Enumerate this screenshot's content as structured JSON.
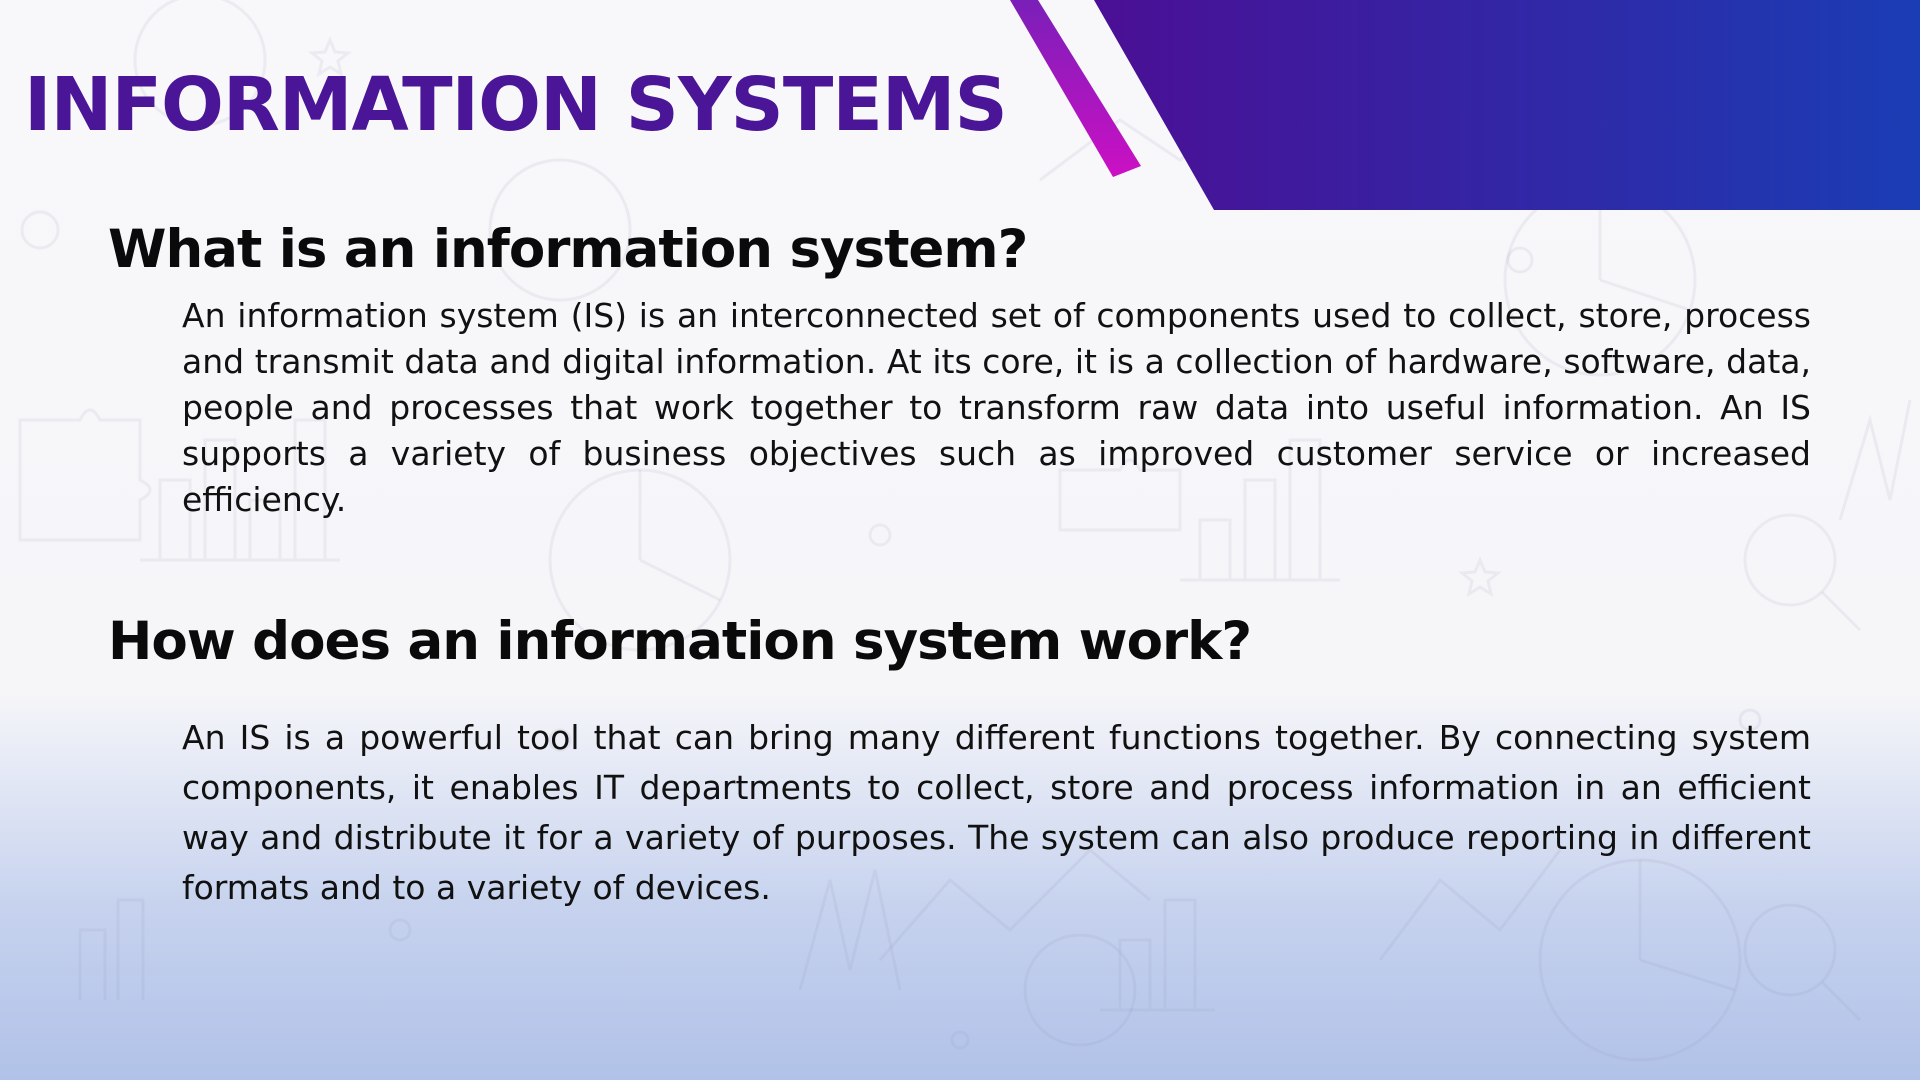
{
  "slide": {
    "title": "INFORMATION SYSTEMS",
    "sections": [
      {
        "heading": "What is an information system?",
        "body": "An information system (IS) is an interconnected set of components used to collect, store, process and transmit data and digital information. At its core, it is a collection of hardware, software, data, people and processes that work together to transform raw data into useful information. An IS supports a variety of business objectives such as improved customer service or increased efficiency."
      },
      {
        "heading": "How does an information system work?",
        "body": "An IS is a powerful tool that can bring many different functions together. By connecting system components, it enables IT departments to collect, store and process information in an efficient way and distribute it for a variety of purposes. The system can also produce reporting in different formats and to a variety of devices."
      }
    ]
  },
  "theme": {
    "title_color": "#4a1596",
    "banner_gradient": [
      "#4b0f95",
      "#1a3db5"
    ],
    "accent_stripe": "#b40fc4",
    "heading_color": "#0a0a0a",
    "body_color": "#111111"
  }
}
